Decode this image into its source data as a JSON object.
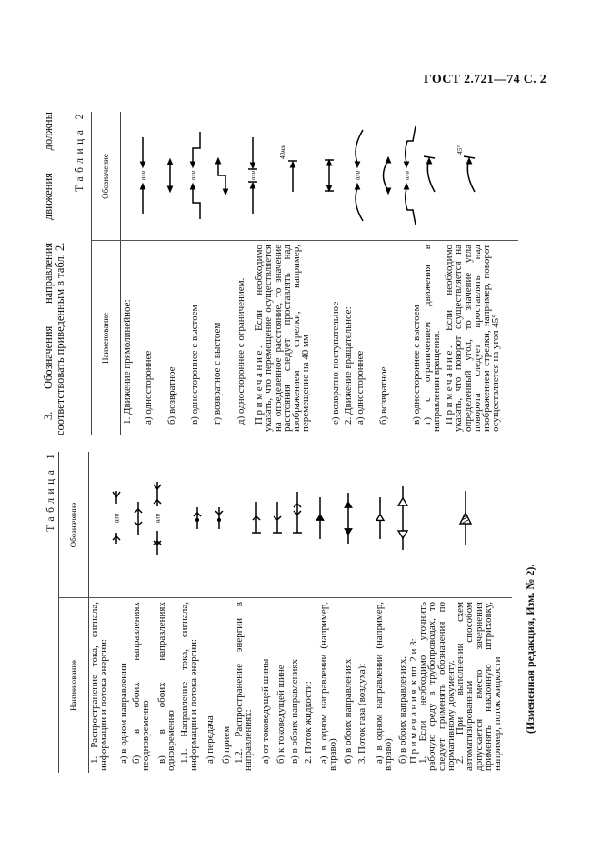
{
  "header": {
    "doc_code": "ГОСТ 2.721—74 С. 2"
  },
  "intro": {
    "line1": "3. Обозначения направления движения должны",
    "line2": "соответствовать приведенным в табл. 2."
  },
  "symbol_labels": {
    "or": "или",
    "distance": "40мм",
    "angle": "45°"
  },
  "table1": {
    "caption": "Таблица 1",
    "col_name": "Наименование",
    "col_symbol": "Обозначение",
    "rows": [
      {
        "name": "1. Распространение тока, сигнала, информации и потока энергии:"
      },
      {
        "name": "а) в одном направлении",
        "symbol": "chevron-arrow-one-way-icon"
      },
      {
        "name": "б) в обоих направлениях неодновременно",
        "symbol": "chevron-arrow-two-way-icon"
      },
      {
        "name": "в) в обоих направлениях одновременно",
        "symbol": "chevron-arrow-simultaneous-icon"
      },
      {
        "name": "1.1. Направление тока, сигнала, информации и потока энергии:"
      },
      {
        "name": "а) передача",
        "symbol": "transmit-arrow-icon"
      },
      {
        "name": "б) прием",
        "symbol": "receive-arrow-icon"
      },
      {
        "name": "1.2. Распространение энергии в направлениях:"
      },
      {
        "name": "а) от токоведущей шины",
        "symbol": "from-bus-arrow-icon"
      },
      {
        "name": "б) к токоведущей шине",
        "symbol": "to-bus-arrow-icon"
      },
      {
        "name": "в) в обоих направлениях",
        "symbol": "bus-both-ways-icon"
      },
      {
        "name": "2. Поток жидкости:"
      },
      {
        "name": "а) в одном направлении (например, вправо)",
        "symbol": "liquid-flow-one-way-icon"
      },
      {
        "name": "б) в обоих направлениях",
        "symbol": "liquid-flow-two-way-icon"
      },
      {
        "name": "3. Поток газа (воздуха):"
      },
      {
        "name": "а) в одном направлении (например, вправо)",
        "symbol": "gas-flow-one-way-icon"
      },
      {
        "name": "б) в обоих направлениях.",
        "symbol": "gas-flow-two-way-icon"
      }
    ],
    "notes_label": "Примечания",
    "notes_suffix": " к пп. 2 и 3:",
    "notes": [
      "1. Если необходимо уточнить рабочую среду в трубопроводах, то следует применять обозначения по нормативному документу.",
      "2. При выполнении схем автоматизированным способом допускается вместо зачернения применять наклонную штриховку, например, поток жидкости"
    ],
    "notes_symbol": "hatched-flow-arrow-icon"
  },
  "table2": {
    "caption": "Таблица 2",
    "col_name": "Наименование",
    "col_symbol": "Обозначение",
    "rows": [
      {
        "name": "1. Движение прямолинейное:"
      },
      {
        "name": "а) одностороннее",
        "symbol": "linear-one-way-icon"
      },
      {
        "name": "б) возвратное",
        "symbol": "linear-reciprocating-icon"
      },
      {
        "name": "в) одностороннее с выстоем",
        "symbol": "linear-one-way-dwell-icon"
      },
      {
        "name": "г) возвратное с выстоем",
        "symbol": "linear-reciprocating-dwell-icon"
      },
      {
        "name": "д) одностороннее с ограничением.",
        "symbol": "linear-one-way-limited-icon"
      },
      {
        "label": "Примечание",
        "name": ". Если необходимо указать, что перемещение осуществляется на определенное расстояние, то значение расстояния следует проставлять над изображением стрелки, например, перемещение на 40 мм",
        "symbol": "linear-distance-icon"
      },
      {
        "name": "е) возвратно-поступательное",
        "symbol": "linear-back-forth-limited-icon"
      },
      {
        "name": "2. Движение вращательное:"
      },
      {
        "name": "а) одностороннее",
        "symbol": "rotary-one-way-icon"
      },
      {
        "name": "б) возвратное",
        "symbol": "rotary-reciprocating-icon"
      },
      {
        "name": "в) одностороннее с выстоем",
        "symbol": "rotary-one-way-dwell-icon"
      },
      {
        "name": "г) с ограничением движения в направлении вращения.",
        "symbol": "rotary-limited-icon"
      },
      {
        "label": "Примечание",
        "name": ". Если необходимо указать, что поворот осуществляется на определенный угол, то значение угла поворота следует проставлять над изображением стрелки, например, поворот осуществляется на угол 45°",
        "symbol": "rotary-angle-icon"
      }
    ]
  },
  "footer_note": "(Измененная редакция, Изм. № 2)."
}
